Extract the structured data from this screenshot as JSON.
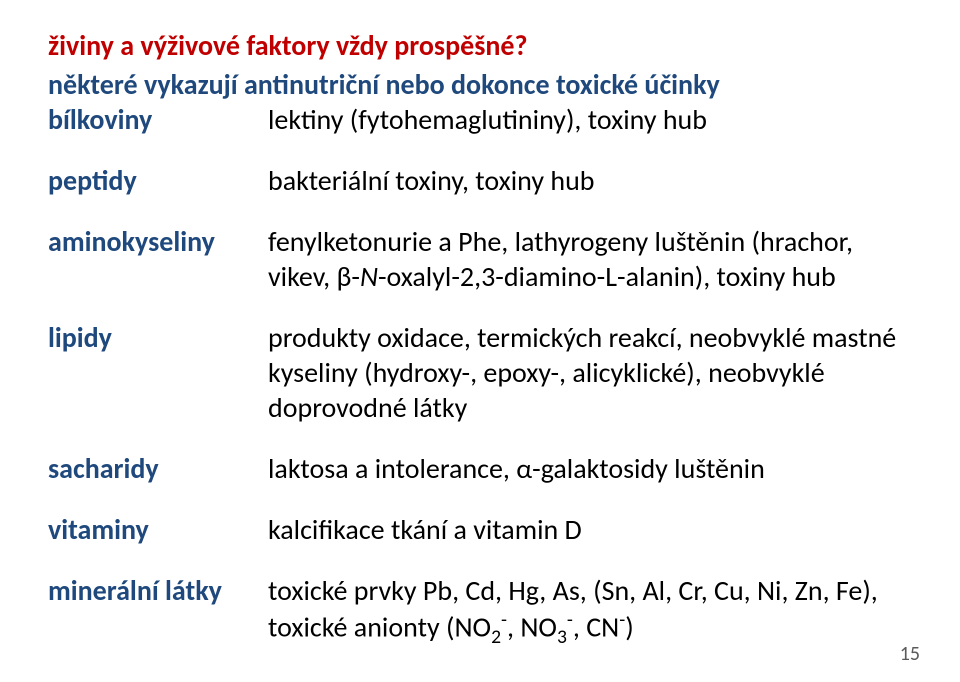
{
  "colors": {
    "red": "#c00000",
    "blue": "#1f497d",
    "black": "#000000",
    "pagenum": "#5a5a5a",
    "background": "#ffffff"
  },
  "title": "živiny a výživové faktory vždy prospěšné?",
  "subtitle": "některé vykazují antinutriční nebo dokonce toxické účinky",
  "rows": {
    "bilkoviny": {
      "term": "bílkoviny",
      "desc": "lektiny (fytohemaglutininy), toxiny hub"
    },
    "peptidy": {
      "term": "peptidy",
      "desc": "bakteriální toxiny, toxiny hub"
    },
    "amino": {
      "term": "aminokyseliny",
      "desc_a": "fenylketonurie a Phe, lathyrogeny luštěnin (hrachor, vikev, ",
      "desc_beta": "β",
      "desc_hyphen1": "-",
      "desc_N": "N",
      "desc_b": "-oxalyl-2,3-diamino-",
      "desc_L": "L",
      "desc_c": "-alanin), toxiny hub"
    },
    "lipidy": {
      "term": "lipidy",
      "desc": "produkty oxidace, termických reakcí, neobvyklé mastné kyseliny (hydroxy-, epoxy-, alicyklické), neobvyklé doprovodné látky"
    },
    "sacharidy": {
      "term": "sacharidy",
      "desc_a": "laktosa a intolerance, ",
      "desc_alpha": "α",
      "desc_b": "-galaktosidy luštěnin"
    },
    "vitaminy": {
      "term": "vitaminy",
      "desc": "kalcifikace tkání a vitamin D"
    },
    "mineralni": {
      "term": "minerální látky",
      "desc_a": "toxické prvky Pb, Cd, Hg, As, (Sn, Al, Cr, Cu, Ni, Zn, Fe), toxické anionty (NO",
      "sub2": "2",
      "supminus": "-",
      "comma_no": ", NO",
      "sub3": "3",
      "comma_cn": ", CN",
      "paren": ")"
    }
  },
  "pagenum": "15"
}
